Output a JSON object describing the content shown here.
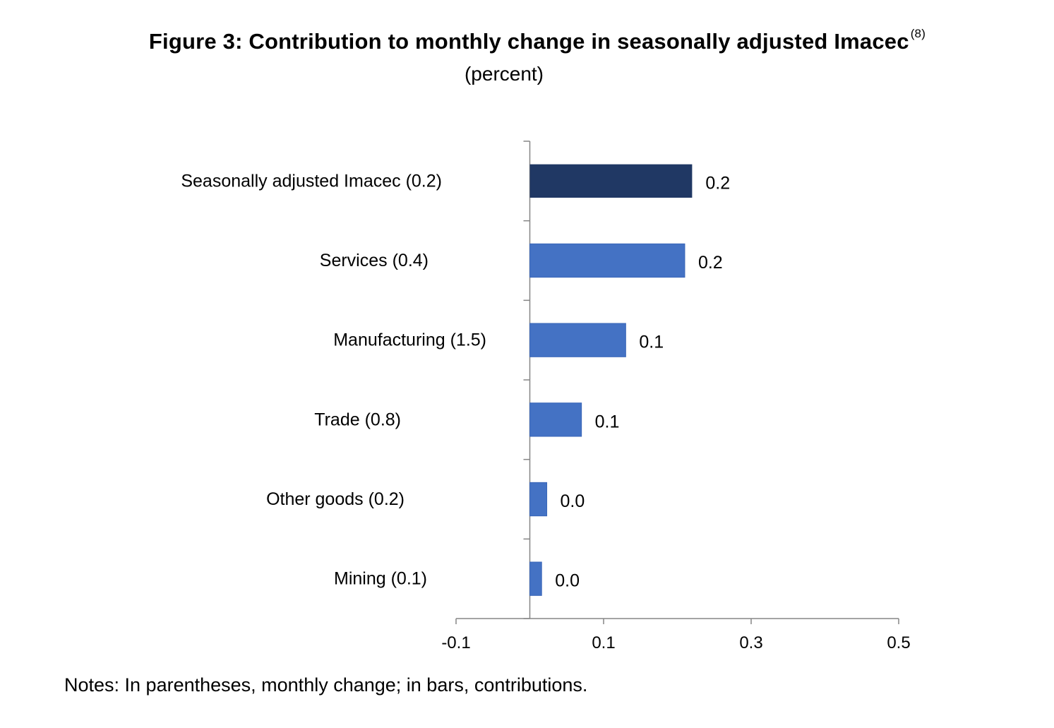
{
  "chart_data": {
    "type": "bar",
    "orientation": "horizontal",
    "title": "Figure 3: Contribution to monthly change in seasonally adjusted Imacec",
    "title_superscript": "(8)",
    "subtitle": "(percent)",
    "categories": [
      "Seasonally adjusted Imacec (0.2)",
      "Services (0.4)",
      "Manufacturing (1.5)",
      "Trade (0.8)",
      "Other goods (0.2)",
      "Mining (0.1)"
    ],
    "values": [
      0.22,
      0.21,
      0.13,
      0.07,
      0.023,
      0.016
    ],
    "value_labels": [
      "0.2",
      "0.2",
      "0.1",
      "0.1",
      "0.0",
      "0.0"
    ],
    "bar_colors": [
      "#203864",
      "#4472C4",
      "#4472C4",
      "#4472C4",
      "#4472C4",
      "#4472C4"
    ],
    "xlim": [
      -0.1,
      0.5
    ],
    "xticks": [
      -0.1,
      0.1,
      0.3,
      0.5
    ],
    "xtick_labels": [
      "-0.1",
      "0.1",
      "0.3",
      "0.5"
    ],
    "xlabel": "",
    "ylabel": "",
    "grid": false,
    "legend": "none"
  },
  "notes": "Notes: In parentheses, monthly change; in bars, contributions."
}
